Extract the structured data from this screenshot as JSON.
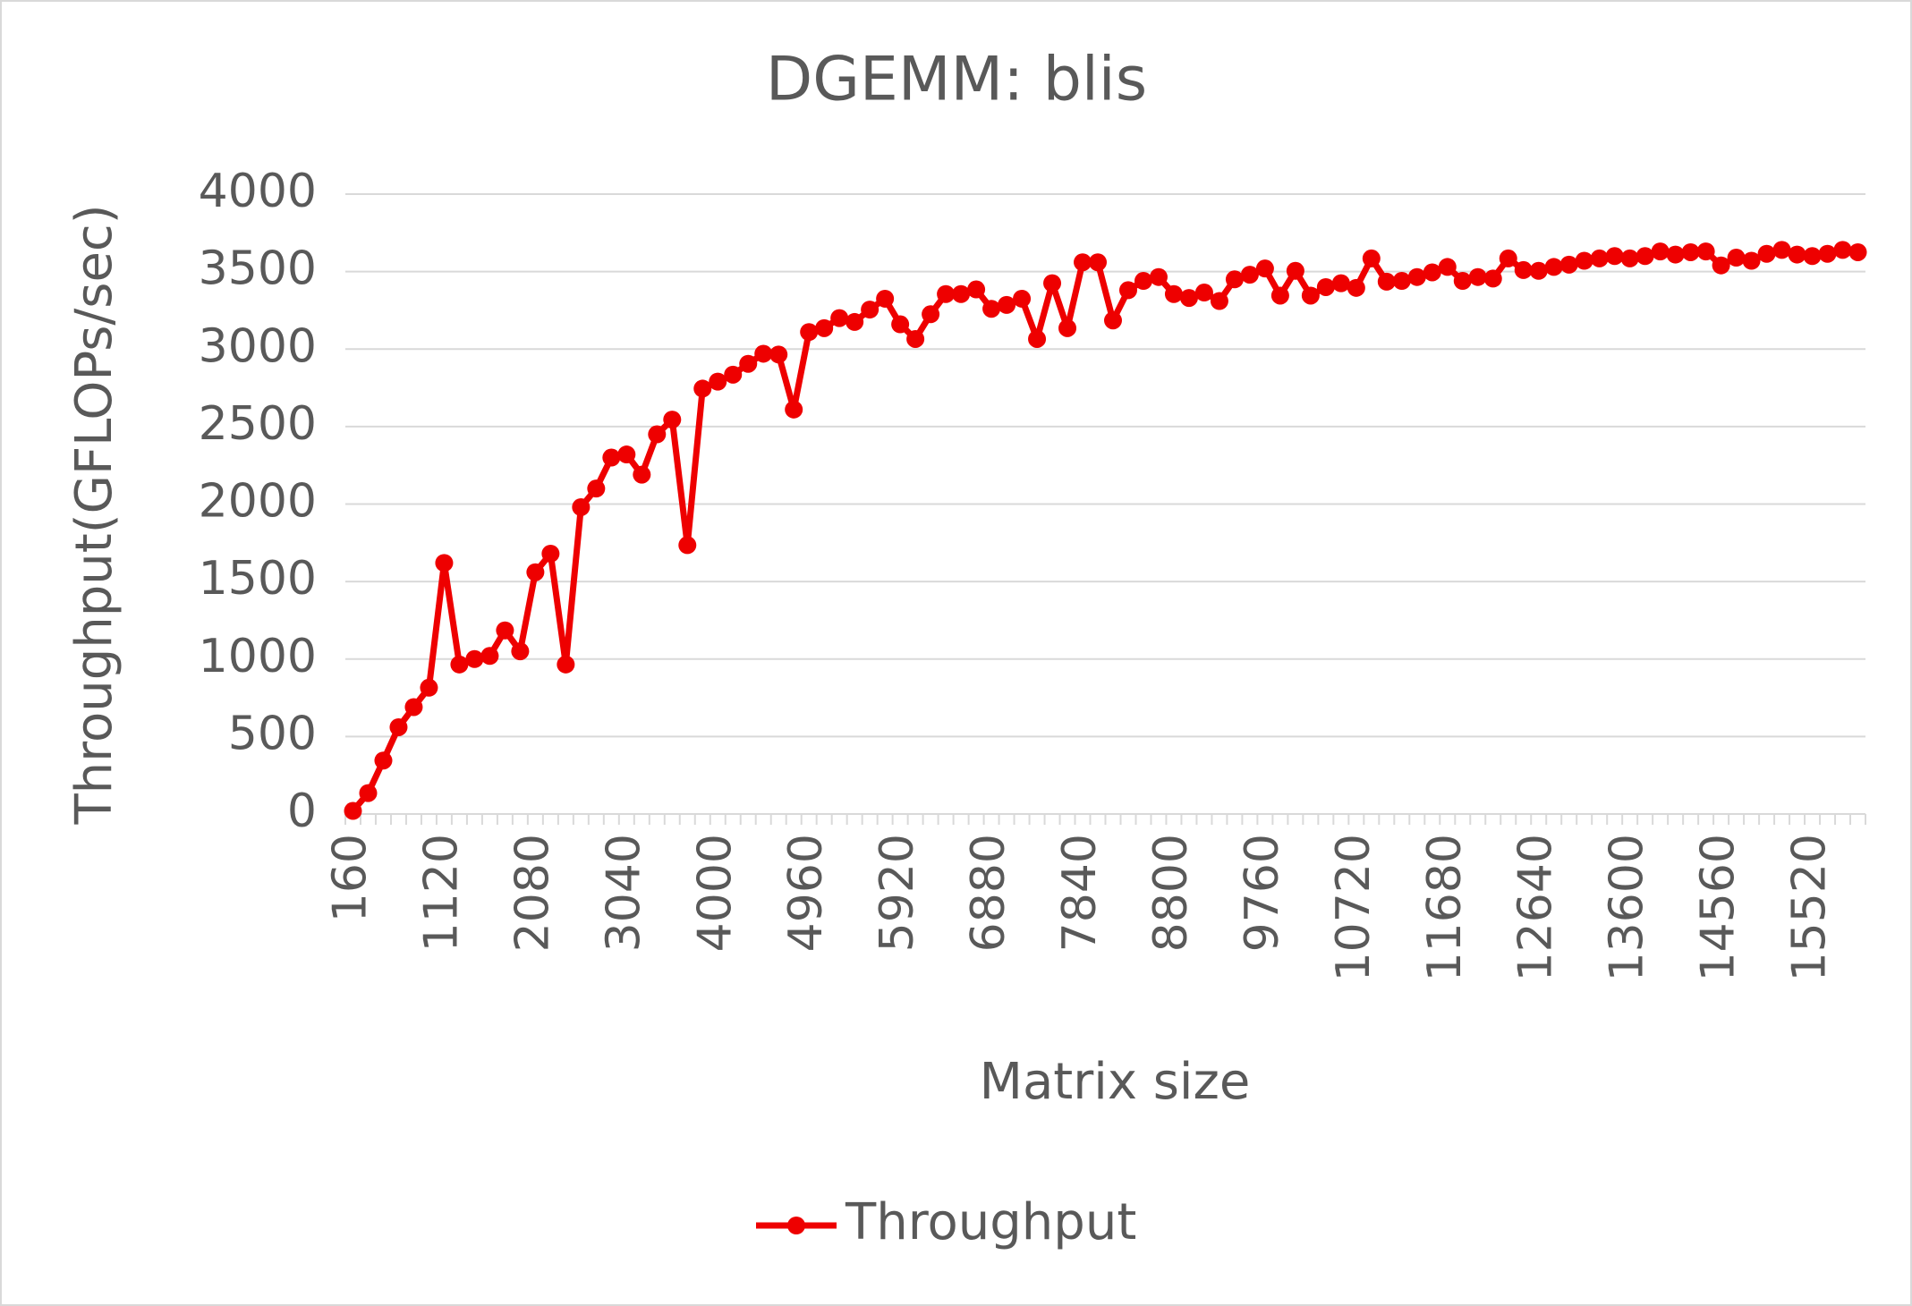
{
  "chart_data": {
    "type": "line",
    "title": "DGEMM: blis",
    "x_label": "Matrix size",
    "y_label": "Throughput(GFLOPs/sec)",
    "categories": [
      "160",
      null,
      null,
      null,
      null,
      null,
      "1120",
      null,
      null,
      null,
      null,
      null,
      "2080",
      null,
      null,
      null,
      null,
      null,
      "3040",
      null,
      null,
      null,
      null,
      null,
      "4000",
      null,
      null,
      null,
      null,
      null,
      "4960",
      null,
      null,
      null,
      null,
      null,
      "5920",
      null,
      null,
      null,
      null,
      null,
      "6880",
      null,
      null,
      null,
      null,
      null,
      "7840",
      null,
      null,
      null,
      null,
      null,
      "8800",
      null,
      null,
      null,
      null,
      null,
      "9760",
      null,
      null,
      null,
      null,
      null,
      "10720",
      null,
      null,
      null,
      null,
      null,
      "11680",
      null,
      null,
      null,
      null,
      null,
      "12640",
      null,
      null,
      null,
      null,
      null,
      "13600",
      null,
      null,
      null,
      null,
      null,
      "14560",
      null,
      null,
      null,
      null,
      null,
      "15520",
      null,
      null,
      null
    ],
    "series": [
      {
        "name": "Throughput",
        "color": "#ee0000",
        "values": [
          20,
          135,
          345,
          560,
          690,
          815,
          1620,
          965,
          1000,
          1020,
          1185,
          1050,
          1560,
          1680,
          965,
          1980,
          2100,
          2300,
          2320,
          2190,
          2450,
          2545,
          1735,
          2745,
          2790,
          2835,
          2905,
          2970,
          2965,
          2610,
          3110,
          3135,
          3200,
          3175,
          3255,
          3325,
          3160,
          3065,
          3225,
          3355,
          3355,
          3385,
          3260,
          3285,
          3325,
          3065,
          3425,
          3135,
          3560,
          3560,
          3185,
          3380,
          3440,
          3465,
          3355,
          3330,
          3365,
          3310,
          3450,
          3480,
          3520,
          3345,
          3505,
          3345,
          3400,
          3425,
          3395,
          3585,
          3435,
          3440,
          3465,
          3495,
          3530,
          3440,
          3465,
          3455,
          3585,
          3510,
          3505,
          3530,
          3545,
          3570,
          3585,
          3600,
          3585,
          3600,
          3630,
          3610,
          3625,
          3630,
          3540,
          3590,
          3570,
          3615,
          3640,
          3610,
          3600,
          3615,
          3640,
          3625
        ]
      }
    ],
    "ylim": [
      0,
      4000
    ],
    "yticks": [
      0,
      500,
      1000,
      1500,
      2000,
      2500,
      3000,
      3500,
      4000
    ],
    "grid": true,
    "legend": "bottom"
  }
}
